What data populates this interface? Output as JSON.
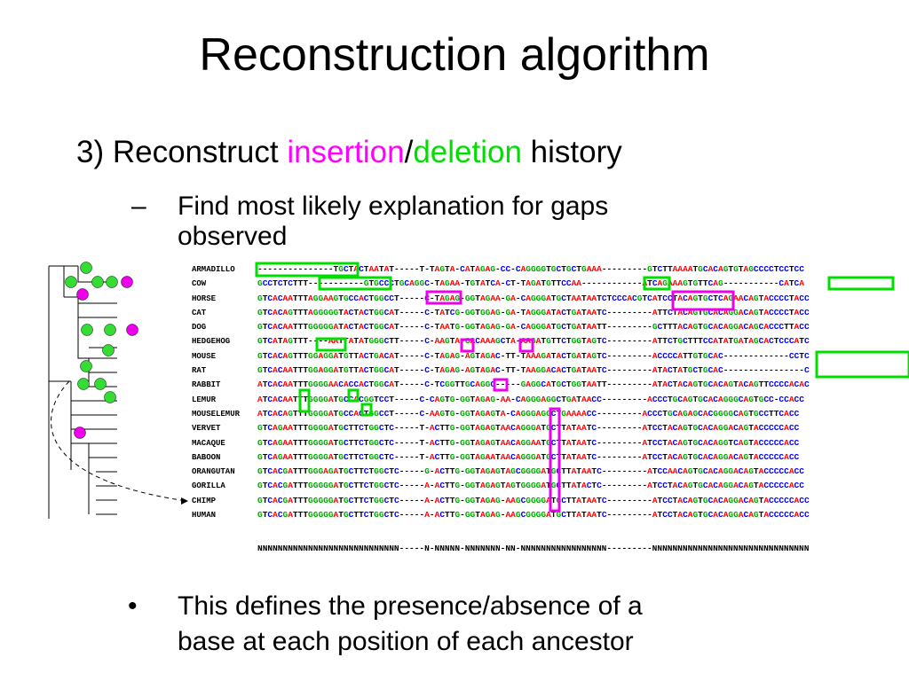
{
  "slide": {
    "title": "Reconstruction algorithm",
    "heading": {
      "prefix": "3) Reconstruct ",
      "insertion": "insertion",
      "slash": "/",
      "deletion": "deletion",
      "suffix": " history"
    },
    "subpoint": {
      "dash": "–",
      "line1": "Find most likely explanation for gaps",
      "line2": "observed"
    },
    "bullet": {
      "mark": "•",
      "line1": "This defines the presence/absence of a",
      "line2": "base at each position of each ancestor"
    }
  },
  "colors": {
    "A": "#ff0000",
    "C": "#0000ff",
    "G": "#00aa00",
    "T": "#000000",
    "insertion": "#ff00ff",
    "deletion": "#00dd00"
  },
  "alignment": {
    "species": [
      "ARMADILLO",
      "COW",
      "HORSE",
      "CAT",
      "DOG",
      "HEDGEHOG",
      "MOUSE",
      "RAT",
      "RABBIT",
      "LEMUR",
      "MOUSELEMUR",
      "VERVET",
      "MACAQUE",
      "BABOON",
      "ORANGUTAN",
      "GORILLA",
      "CHIMP",
      "HUMAN"
    ],
    "sequences": [
      "---------------TGCTACTAATAT-----T-TAGTA-CATAGAG-CC-CAGGGGTGCTGCTGAAA---------GTCTTAAAATGCACAGTGTAGCCCCTCCTCC",
      "GCCTCTCTTT-----------GTGCCCTGCAGGC-TAGAA-TGTATCA-CT-TAGATGTTCCAA------------ATCAGAAAGTGTTCAG-----------CATCA",
      "GTCACAATTTAGGAAGTGCCACTGGCCT-----C-TAGAG-GGTAGAA-GA-CAGGGATGCTAATAATCTCCCACGTCATCCTACAGTGCTCAGAACAGTACCCCTACC",
      "GTCACAGTTTAGGGGGTACTACTGGCAT-----C-TATCG-GGTGGAG-GA-TAGGGATACTGATAATC---------ATTCTACAGTGCACAGGACAGTACCCCTACC",
      "GTCACAATTTGGGGGATACTACTGGCAT-----C-TAATG-GGTAGAG-GA-CAGGGATGCTGATAATT---------GCTTTACAGTGCACAGGACAGCACCCTTACC",
      "GTCATAGTTT----AATTATATGGGCTT-----C-AAGTA-GACAAAGCTA-AAGATGTTCTGGTAGTC---------ATTCTGCTTTCCATATGATAGCACTCCCATC",
      "GTCACAGTTTGGAGGATGTTACTGACAT-----C-TAGAG-AGTAGAC-TT-TAAAGATACTGATAGTC---------ACCCCATTGTGCAC-------------CCTC",
      "GTCACAATTTGGAGGATGTTACTGGCAT-----C-TAGAG-AGTAGAC-TT-TAAGGACACTGATAATC---------ATACTATGCTGCAC----------------C",
      "ATCACAATTTGGGGAACACCACTGGCAT-----C-TCGGTTGCAGGC-----GAGGCATGCTGGTAATT---------ATACTACAGTGCACAGTACAGTTCCCCACAC",
      "ATCACAATTTGGGGATGCCACGGTCCT-----C-CAGTG-GGTAGAG-AA-CAGGGAGGCTGATAACC---------ACCCTGCAGTGCACAGGGCAGTGCC-CCACC",
      "ATCACAGTTTGGGGATGCCACTGGCCT-----C-AAGTG-GGTAGAGTA-CAGGGAGGCTGAAAACC---------ACCCTGCAGAGCACGGGGCAGTGCCTTCACC",
      "GTCAGAATTTGGGGATGCTTCTGGCTC-----T-ACTTG-GGTAGAGTAACAGGGATGCTTATAATC---------ATCCTACAGTGCACAGGACAGTACCCCCACC",
      "GTCAGAATTTGGGGATGCTTCTGGCTC-----T-ACTTG-GGTAGAGTAACAGGAATGCTTATAATC---------ATCCTACAGTGCACAGGTCAGTACCCCCACC",
      "GTCAGAATTTGGGGATGCTTCTGGCTC-----T-ACTTG-GGTAGAATAACAGGGATGCTTATAATC---------ATCCTACAGTGCACAGGACAGTACCCCCACC",
      "GTCACGATTTGGGAGATGCTTCTGGCTC-----G-ACTTG-GGTAGAGTAGCGGGGATGCTTATAATC---------ATCCAACAGTGCACAGGACAGTACCCCCACC",
      "GTCACGATTTGGGGGATGCTTCTGGCTC-----A-ACTTG-GGTAGAGTAGTGGGGATGCTTATACTC---------ATCCTACAGTGCACAGGACAGTACCCCCACC",
      "GTCACGATTTGGGGGATGCTTCTGGCTC-----A-ACTTG-GGTAGAG-AAGCGGGGATGCTTATAATC---------ATCCTACAGTGCACAGGACAGTACCCCCACC",
      "GTCACGATTTGGGGGATGCTTCTGGCTC-----A-ACTTG-GGTAGAG-AAGCGGGGATGCTTATAATC---------ATCCTACAGTGCACAGGACAGTACCCCCACC"
    ],
    "ancestor": "NNNNNNNNNNNNNNNNNNNNNNNNNNNN-----N-NNNNN-NNNNNNN-NN-NNNNNNNNNNNNNNNNN---------NNNNNNNNNNNNNNNNNNNNNNNNNNNNNNN"
  }
}
